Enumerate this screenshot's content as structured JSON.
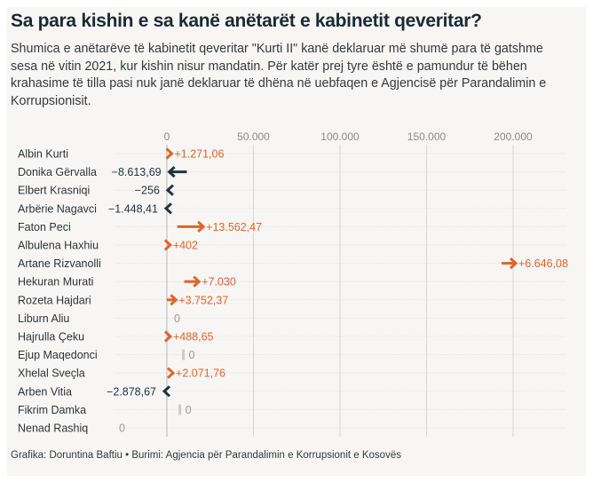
{
  "header": {
    "title": "Sa para kishin e sa kanë anëtarët e kabinetit qeveritar?",
    "subtitle": "Shumica e anëtarëve të kabinetit qeveritar \"Kurti II\" kanë deklaruar më shumë para të gatshme sesa në vitin 2021, kur kishin nisur mandatin. Për katër prej tyre është e pamundur të bëhen krahasime të tilla pasi nuk janë deklaruar të dhëna në uebfaqen e Agjencisë për Parandalimin e Korrupsionisit."
  },
  "footer": {
    "credit": "Grafika: Doruntina Baftiu • Burimi: Agjencia për Parandalimin e Korrupsionit e Kosovës"
  },
  "colors": {
    "increase": "#e0642a",
    "decrease": "#1e3440",
    "nochange": "#cccccc",
    "grid": "#d6d6d6",
    "axis_label": "#8a8a8a"
  },
  "chart_data": {
    "type": "arrow",
    "title": "Sa para kishin e sa kanë anëtarët e kabinetit qeveritar?",
    "xlabel": "",
    "ylabel": "",
    "xlim": [
      0,
      230000
    ],
    "xticks": [
      0,
      50000,
      100000,
      150000,
      200000
    ],
    "xtick_labels": [
      "0",
      "50.000",
      "100.000",
      "150.000",
      "200.000"
    ],
    "grid": true,
    "rows": [
      {
        "name": "Albin Kurti",
        "start": 0,
        "end": 1271.06,
        "label": "+1.271,06",
        "direction": "up"
      },
      {
        "name": "Donika Gërvalla",
        "start": 11500,
        "end": 2886.31,
        "label": "−8.613,69",
        "direction": "down"
      },
      {
        "name": "Elbert Krasniqi",
        "start": 2256,
        "end": 2000,
        "label": "−256",
        "direction": "down"
      },
      {
        "name": "Arbërie Nagavci",
        "start": 2448.41,
        "end": 1000,
        "label": "−1.448,41",
        "direction": "down"
      },
      {
        "name": "Faton Peci",
        "start": 6000,
        "end": 19562.47,
        "label": "+13.562,47",
        "direction": "up"
      },
      {
        "name": "Albulena Haxhiu",
        "start": 0,
        "end": 402,
        "label": "+402",
        "direction": "up"
      },
      {
        "name": "Artane Rizvanolli",
        "start": 193353.92,
        "end": 200000,
        "label": "+6.646,08",
        "direction": "up"
      },
      {
        "name": "Hekuran Murati",
        "start": 10000,
        "end": 17030,
        "label": "+7.030",
        "direction": "up"
      },
      {
        "name": "Rozeta Hajdari",
        "start": 0,
        "end": 3752.37,
        "label": "+3.752,37",
        "direction": "up"
      },
      {
        "name": "Liburn Aliu",
        "start": null,
        "end": null,
        "label": "0",
        "direction": "none"
      },
      {
        "name": "Hajrulla Çeku",
        "start": 0,
        "end": 488.65,
        "label": "+488,65",
        "direction": "up"
      },
      {
        "name": "Ejup Maqedonci",
        "start": 9500,
        "end": 9500,
        "label": "0",
        "direction": "flat"
      },
      {
        "name": "Xhelal Sveçla",
        "start": 0,
        "end": 2071.76,
        "label": "+2.071,76",
        "direction": "up"
      },
      {
        "name": "Arben Vitia",
        "start": 2878.67,
        "end": 0,
        "label": "−2.878,67",
        "direction": "down"
      },
      {
        "name": "Fikrim Damka",
        "start": 7500,
        "end": 7500,
        "label": "0",
        "direction": "flat"
      },
      {
        "name": "Nenad Rashiq",
        "start": null,
        "end": null,
        "label": "0",
        "direction": "none"
      }
    ]
  }
}
